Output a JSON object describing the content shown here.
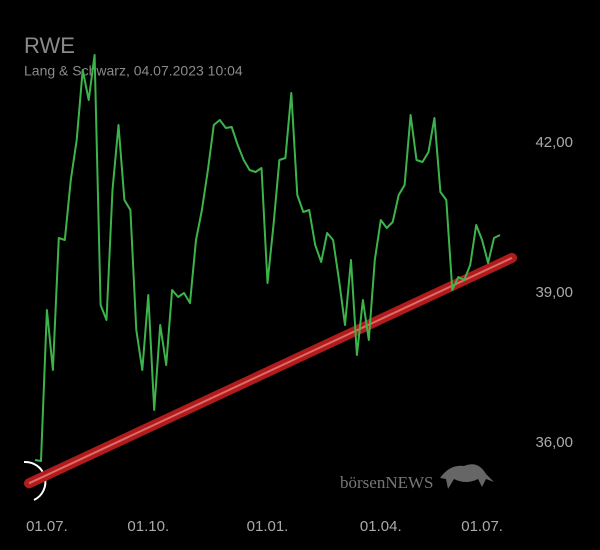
{
  "chart_data": {
    "type": "line",
    "title": "RWE",
    "subtitle": "Lang & Schwarz, 04.07.2023 10:04",
    "watermark": "börsenNEWS",
    "categories": [
      null,
      null,
      "01.07.",
      null,
      null,
      null,
      null,
      null,
      null,
      null,
      null,
      null,
      null,
      null,
      null,
      null,
      null,
      null,
      null,
      "01.10.",
      null,
      null,
      null,
      null,
      null,
      null,
      null,
      null,
      null,
      null,
      null,
      null,
      null,
      null,
      null,
      null,
      null,
      null,
      null,
      "01.01.",
      null,
      null,
      null,
      null,
      null,
      null,
      null,
      null,
      null,
      null,
      null,
      null,
      null,
      null,
      null,
      null,
      null,
      null,
      "01.04.",
      null,
      null,
      null,
      null,
      null,
      null,
      null,
      null,
      null,
      null,
      null,
      null,
      null,
      null,
      null,
      null,
      "01.07.",
      null,
      null,
      null
    ],
    "series": [
      {
        "color": "#3cb44b",
        "values": [
          35.66,
          35.64,
          38.66,
          37.46,
          40.1,
          40.06,
          41.26,
          42.06,
          43.46,
          42.86,
          43.76,
          38.76,
          38.46,
          41.06,
          42.36,
          40.86,
          40.66,
          38.26,
          37.46,
          38.96,
          36.66,
          38.36,
          37.56,
          39.06,
          38.92,
          39.0,
          38.8,
          40.06,
          40.66,
          41.46,
          42.36,
          42.46,
          42.3,
          42.32,
          41.96,
          41.66,
          41.46,
          41.42,
          41.5,
          39.2,
          40.36,
          41.66,
          41.7,
          43.0,
          40.96,
          40.62,
          40.66,
          39.96,
          39.62,
          40.2,
          40.06,
          39.26,
          38.36,
          39.66,
          37.76,
          38.86,
          38.06,
          39.66,
          40.46,
          40.3,
          40.42,
          40.96,
          41.16,
          42.56,
          41.66,
          41.62,
          41.82,
          42.5,
          41.02,
          40.86,
          39.06,
          39.32,
          39.26,
          39.56,
          40.36,
          40.06,
          39.6,
          40.1,
          40.16
        ]
      }
    ],
    "trend_line": {
      "color": "#b01c1c",
      "values": [
        35.25,
        39.59
      ]
    },
    "ylim": [
      35,
      44.5
    ],
    "yticks": [
      {
        "value": 36,
        "label": "36,00"
      },
      {
        "value": 39,
        "label": "39,00"
      },
      {
        "value": 42,
        "label": "42,00"
      }
    ]
  }
}
